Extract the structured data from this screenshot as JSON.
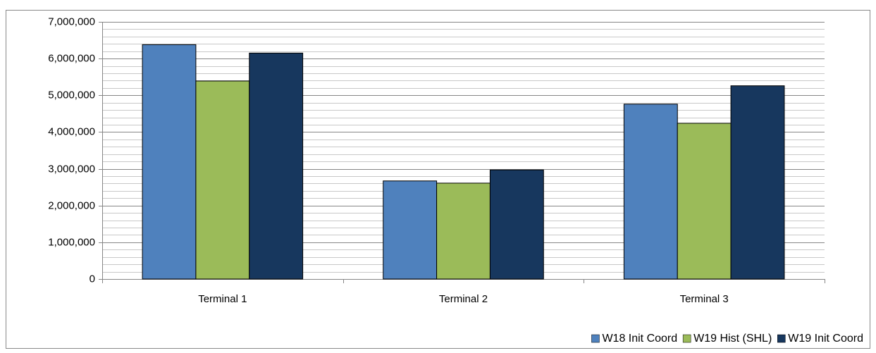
{
  "chart_data": {
    "type": "bar",
    "categories": [
      "Terminal 1",
      "Terminal 2",
      "Terminal 3"
    ],
    "series": [
      {
        "name": "W18 Init Coord",
        "color": "#4f81bd",
        "values": [
          6380000,
          2670000,
          4760000
        ]
      },
      {
        "name": "W19 Hist (SHL)",
        "color": "#9bbb59",
        "values": [
          5390000,
          2610000,
          4240000
        ]
      },
      {
        "name": "W19 Init Coord",
        "color": "#17375e",
        "values": [
          6150000,
          2970000,
          5260000
        ]
      }
    ],
    "ylim": [
      0,
      7000000
    ],
    "yticks": [
      0,
      {
        "value": 1000000,
        "label": "1,000,000"
      },
      {
        "value": 2000000,
        "label": "2,000,000"
      },
      {
        "value": 3000000,
        "label": "3,000,000"
      },
      {
        "value": 4000000,
        "label": "4,000,000"
      },
      {
        "value": 5000000,
        "label": "5,000,000"
      },
      {
        "value": 6000000,
        "label": "6,000,000"
      },
      {
        "value": 7000000,
        "label": "7,000,000"
      }
    ],
    "yminorticks": [
      200000,
      400000,
      600000,
      800000,
      1200000,
      1400000,
      1600000,
      1800000,
      2200000,
      2400000,
      2600000,
      2800000,
      3200000,
      3400000,
      3600000,
      3800000,
      4200000,
      4400000,
      4600000,
      4800000,
      5200000,
      5400000,
      5600000,
      5800000,
      6200000,
      6400000,
      6600000,
      6800000
    ],
    "grid": true,
    "legend": "bottom-right"
  }
}
